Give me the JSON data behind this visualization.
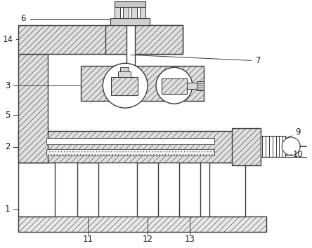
{
  "fig_width": 4.44,
  "fig_height": 3.54,
  "dpi": 100,
  "bg_color": "#ffffff",
  "line_color": "#3a3a3a",
  "hatch_lw": 0.4,
  "main_lw": 1.0
}
